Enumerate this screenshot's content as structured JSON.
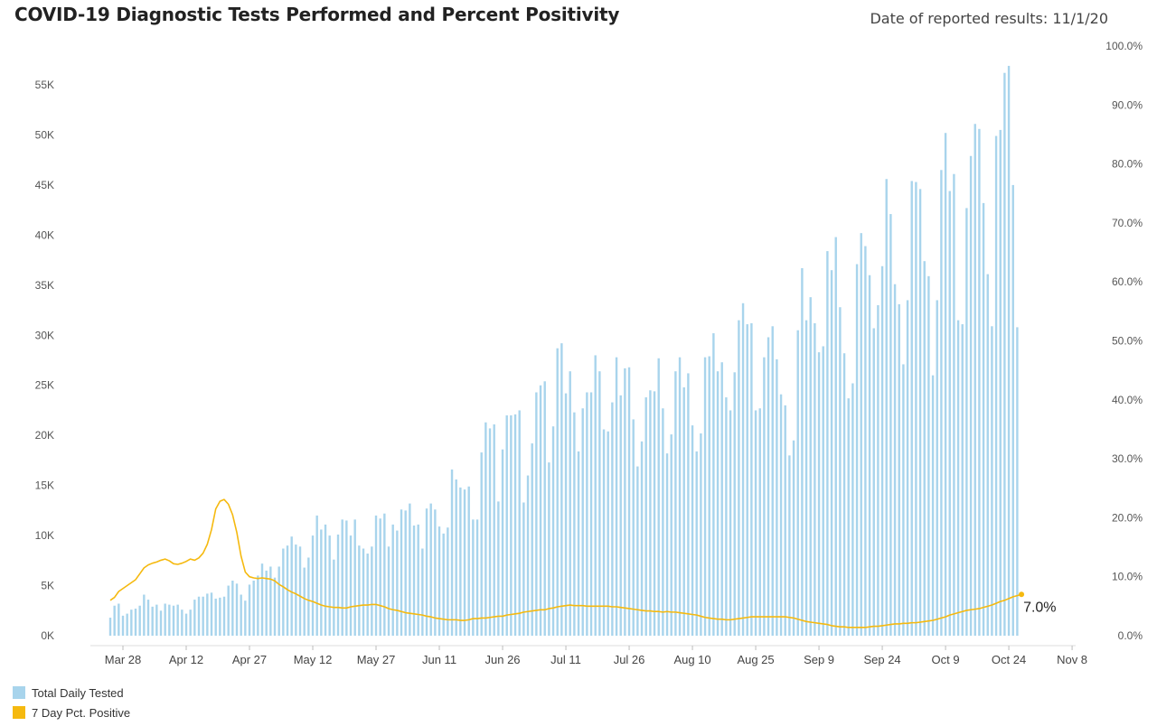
{
  "header": {
    "title": "COVID-19 Diagnostic Tests Performed and Percent Positivity",
    "date_label": "Date of reported results: 11/1/20"
  },
  "legend": {
    "items": [
      {
        "label": "Total Daily Tested",
        "color": "#a8d4ec"
      },
      {
        "label": "7 Day Pct. Positive",
        "color": "#f5b90f"
      }
    ]
  },
  "chart_data": {
    "type": "bar",
    "start_date": "2020-03-25",
    "end_date": "2020-11-01",
    "x_ticks": [
      "Mar 28",
      "Apr 12",
      "Apr 27",
      "May 12",
      "May 27",
      "Jun 11",
      "Jun 26",
      "Jul 11",
      "Jul 26",
      "Aug 10",
      "Aug 25",
      "Sep 9",
      "Sep 24",
      "Oct 9",
      "Oct 24",
      "Nov 8"
    ],
    "x_tick_days": [
      3,
      18,
      33,
      48,
      63,
      78,
      93,
      108,
      123,
      138,
      153,
      168,
      183,
      198,
      213,
      228
    ],
    "y_left": {
      "ticks": [
        "0K",
        "5K",
        "10K",
        "15K",
        "20K",
        "25K",
        "30K",
        "35K",
        "40K",
        "45K",
        "50K",
        "55K"
      ],
      "max": 55000
    },
    "y_right": {
      "ticks": [
        "0.0%",
        "10.0%",
        "20.0%",
        "30.0%",
        "40.0%",
        "50.0%",
        "60.0%",
        "70.0%",
        "80.0%",
        "90.0%",
        "100.0%"
      ],
      "max": 100
    },
    "series": [
      {
        "name": "Total Daily Tested",
        "axis": "left",
        "color": "#a8d4ec",
        "values": [
          1800,
          3000,
          3200,
          2000,
          2200,
          2600,
          2700,
          3000,
          4100,
          3600,
          2900,
          3100,
          2500,
          3200,
          3100,
          3000,
          3100,
          2600,
          2200,
          2600,
          3600,
          3900,
          3900,
          4200,
          4300,
          3700,
          3800,
          3900,
          5000,
          5500,
          5200,
          4100,
          3500,
          5100,
          5500,
          6000,
          7200,
          6500,
          6900,
          5800,
          6900,
          8700,
          9000,
          9900,
          9100,
          8900,
          6800,
          7800,
          10000,
          12000,
          10600,
          11100,
          10000,
          7600,
          10100,
          11600,
          11500,
          10000,
          11600,
          9000,
          8700,
          8200,
          8900,
          12000,
          11700,
          12200,
          8900,
          11100,
          10500,
          12600,
          12500,
          13200,
          11000,
          11100,
          8700,
          12700,
          13200,
          12600,
          10900,
          10200,
          10800,
          16600,
          15600,
          14800,
          14600,
          14900,
          11600,
          11600,
          18300,
          21300,
          20700,
          21100,
          13400,
          18600,
          22000,
          22000,
          22100,
          22500,
          13300,
          16000,
          19200,
          24300,
          25000,
          25400,
          17300,
          20900,
          28700,
          29200,
          24200,
          26400,
          22300,
          18400,
          22700,
          24300,
          24300,
          28000,
          26400,
          20600,
          20400,
          23300,
          27800,
          24000,
          26700,
          26800,
          21600,
          16900,
          19400,
          23800,
          24500,
          24400,
          27700,
          22700,
          18200,
          20100,
          26400,
          27800,
          24800,
          26200,
          21000,
          18400,
          20200,
          27800,
          27900,
          30200,
          26400,
          27300,
          23800,
          22500,
          26300,
          31500,
          33200,
          31100,
          31200,
          22500,
          22700,
          27800,
          29800,
          30900,
          27600,
          24100,
          23000,
          18000,
          19500,
          30500,
          36700,
          31500,
          33800,
          31200,
          28300,
          28900,
          38400,
          36500,
          39800,
          32800,
          28200,
          23700,
          25200,
          37100,
          40200,
          38900,
          36000,
          30700,
          33000,
          36900,
          45600,
          42100,
          35100,
          33100,
          27100,
          33500,
          45400,
          45300,
          44600,
          37400,
          35900,
          26000,
          33500,
          46500,
          50200,
          44400,
          46100,
          31500,
          31100,
          42700,
          47900,
          51100,
          50600,
          43200,
          36100,
          30900,
          49900,
          50500,
          56200,
          56900,
          45000,
          30800
        ],
        "color_note": "bars"
      },
      {
        "name": "7 Day Pct. Positive",
        "axis": "right",
        "color": "#f5b90f",
        "values": [
          6.0,
          6.5,
          7.5,
          8.0,
          8.5,
          9.0,
          9.5,
          10.5,
          11.5,
          12.0,
          12.3,
          12.5,
          12.8,
          13.0,
          12.7,
          12.2,
          12.1,
          12.3,
          12.6,
          13.0,
          12.8,
          13.2,
          14.0,
          15.5,
          18.0,
          21.5,
          22.8,
          23.1,
          22.3,
          20.5,
          17.5,
          13.5,
          10.8,
          10.0,
          9.8,
          9.7,
          9.8,
          9.7,
          9.6,
          9.3,
          8.7,
          8.3,
          7.8,
          7.4,
          7.1,
          6.7,
          6.3,
          6.0,
          5.8,
          5.5,
          5.2,
          5.0,
          4.9,
          4.8,
          4.8,
          4.7,
          4.7,
          4.9,
          5.0,
          5.1,
          5.2,
          5.2,
          5.3,
          5.3,
          5.1,
          4.9,
          4.6,
          4.4,
          4.3,
          4.1,
          3.9,
          3.8,
          3.7,
          3.6,
          3.5,
          3.3,
          3.2,
          3.0,
          2.9,
          2.8,
          2.7,
          2.7,
          2.7,
          2.6,
          2.6,
          2.7,
          2.9,
          2.9,
          3.0,
          3.0,
          3.1,
          3.2,
          3.3,
          3.3,
          3.5,
          3.6,
          3.7,
          3.8,
          4.0,
          4.1,
          4.2,
          4.3,
          4.4,
          4.4,
          4.6,
          4.7,
          4.9,
          5.0,
          5.1,
          5.2,
          5.1,
          5.1,
          5.1,
          5.0,
          5.0,
          5.0,
          5.0,
          5.0,
          5.0,
          4.9,
          4.9,
          4.8,
          4.7,
          4.6,
          4.5,
          4.4,
          4.3,
          4.2,
          4.2,
          4.1,
          4.1,
          4.0,
          4.1,
          4.0,
          4.0,
          3.9,
          3.8,
          3.7,
          3.6,
          3.5,
          3.3,
          3.1,
          3.0,
          2.9,
          2.8,
          2.8,
          2.7,
          2.7,
          2.8,
          2.9,
          3.0,
          3.1,
          3.2,
          3.2,
          3.2,
          3.2,
          3.2,
          3.2,
          3.2,
          3.2,
          3.2,
          3.1,
          3.0,
          2.8,
          2.6,
          2.4,
          2.3,
          2.2,
          2.1,
          2.0,
          1.9,
          1.7,
          1.6,
          1.5,
          1.5,
          1.4,
          1.4,
          1.4,
          1.4,
          1.4,
          1.5,
          1.6,
          1.6,
          1.7,
          1.8,
          1.9,
          2.0,
          2.0,
          2.1,
          2.1,
          2.2,
          2.2,
          2.3,
          2.4,
          2.5,
          2.6,
          2.8,
          3.0,
          3.2,
          3.5,
          3.7,
          3.9,
          4.1,
          4.3,
          4.4,
          4.5,
          4.6,
          4.8,
          5.0,
          5.2,
          5.5,
          5.8,
          6.0,
          6.3,
          6.6,
          6.8,
          7.0
        ]
      }
    ],
    "annotations": [
      {
        "series": "7 Day Pct. Positive",
        "text": "7.0%",
        "at": "last"
      }
    ],
    "grid": false
  }
}
